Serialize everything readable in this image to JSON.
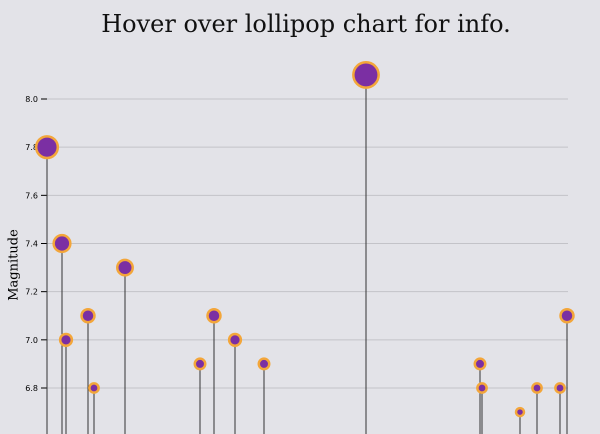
{
  "chart_data": {
    "type": "scatter",
    "title": "Hover over lollipop chart for info.",
    "xlabel": "",
    "ylabel": "Magnitude",
    "ylim": [
      6.6,
      8.2
    ],
    "yticks": [
      "8.0",
      "7.8",
      "7.6",
      "7.4",
      "7.2",
      "7.0",
      "6.8"
    ],
    "grid": true,
    "colors": {
      "fill": "#7b2fa3",
      "stroke": "#f3a63a",
      "stem": "#333333",
      "grid": "#c3c3c8"
    },
    "points": [
      {
        "x": 1,
        "y": 7.8
      },
      {
        "x": 2,
        "y": 7.4
      },
      {
        "x": 3,
        "y": 7.0
      },
      {
        "x": 4,
        "y": 7.1
      },
      {
        "x": 5,
        "y": 6.8
      },
      {
        "x": 6,
        "y": 7.3
      },
      {
        "x": 7,
        "y": 6.9
      },
      {
        "x": 8,
        "y": 7.1
      },
      {
        "x": 9,
        "y": 7.0
      },
      {
        "x": 10,
        "y": 6.9
      },
      {
        "x": 11,
        "y": 8.1
      },
      {
        "x": 12,
        "y": 6.9
      },
      {
        "x": 13,
        "y": 6.8
      },
      {
        "x": 14,
        "y": 6.7
      },
      {
        "x": 15,
        "y": 6.8
      },
      {
        "x": 16,
        "y": 6.8
      },
      {
        "x": 17,
        "y": 7.1
      }
    ]
  }
}
